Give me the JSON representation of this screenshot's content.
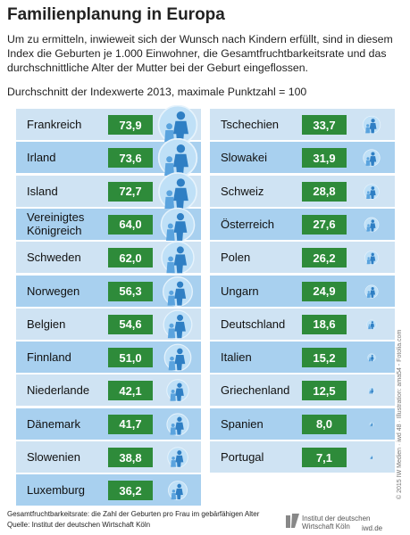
{
  "chart_data": {
    "type": "icon-list",
    "title": "Familienplanung in Europa",
    "subtitle": "Um zu ermitteln, inwieweit sich der Wunsch nach Kindern erfüllt, sind in diesem Index die Geburten je 1.000 Einwohner, die Gesamtfruchtbarkeitsrate und das durchschnittliche Alter der Mutter bei der Geburt eingeflossen.",
    "note": "Durchschnitt der Indexwerte 2013, maximale Punktzahl = 100",
    "categories": [
      "Frankreich",
      "Irland",
      "Island",
      "Vereinigtes Königreich",
      "Schweden",
      "Norwegen",
      "Belgien",
      "Finnland",
      "Niederlande",
      "Dänemark",
      "Slowenien",
      "Luxemburg",
      "Tschechien",
      "Slowakei",
      "Schweiz",
      "Österreich",
      "Polen",
      "Ungarn",
      "Deutschland",
      "Italien",
      "Griechenland",
      "Spanien",
      "Portugal"
    ],
    "values": [
      73.9,
      73.6,
      72.7,
      64.0,
      62.0,
      56.3,
      54.6,
      51.0,
      42.1,
      41.7,
      38.8,
      36.2,
      33.7,
      31.9,
      28.8,
      27.6,
      26.2,
      24.9,
      18.6,
      15.2,
      12.5,
      8.0,
      7.1
    ],
    "value_labels": [
      "73,9",
      "73,6",
      "72,7",
      "64,0",
      "62,0",
      "56,3",
      "54,6",
      "51,0",
      "42,1",
      "41,7",
      "38,8",
      "36,2",
      "33,7",
      "31,9",
      "28,8",
      "27,6",
      "26,2",
      "24,9",
      "18,6",
      "15,2",
      "12,5",
      "8,0",
      "7,1"
    ],
    "colors": [
      "#cfe3f3",
      "#a8d0ef"
    ]
  },
  "footer": {
    "definition": "Gesamtfruchtbarkeitsrate: die Zahl der Geburten pro Frau im gebärfähigen Alter",
    "source": "Quelle: Institut der deutschen Wirtschaft Köln",
    "credit": "© 2015 IW Medien · iwd 48 · Illustration: ama54 - Fotolia.com",
    "logo": "Institut der deutschen Wirtschaft Köln",
    "site": "iwd.de"
  }
}
